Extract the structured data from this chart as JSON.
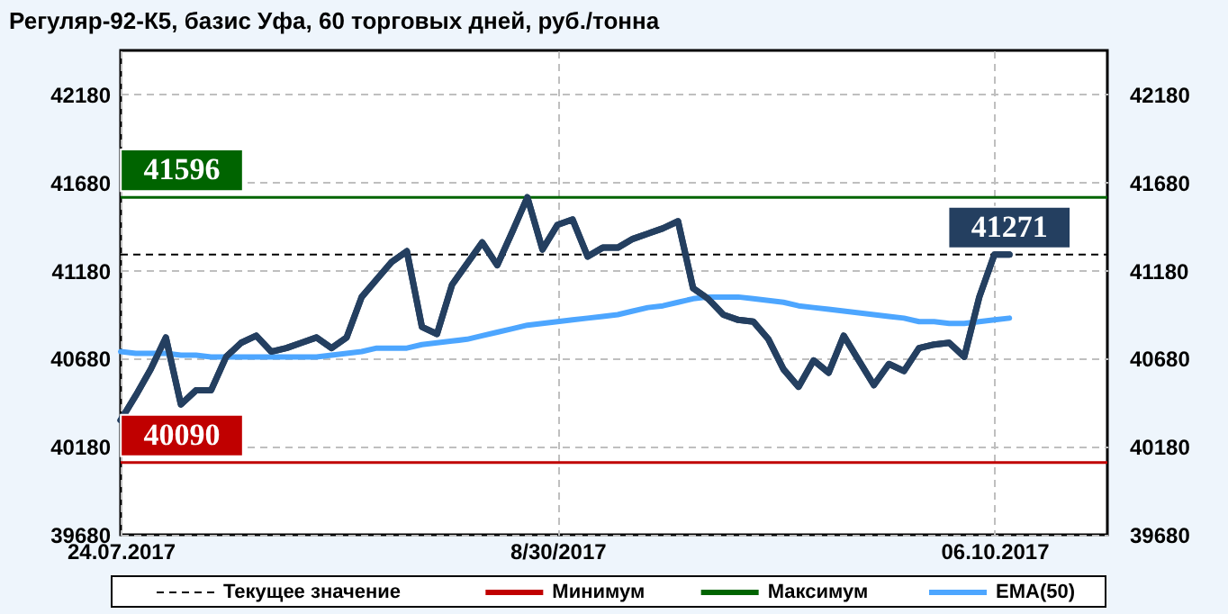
{
  "chart_data": {
    "type": "line",
    "title": "Регуляр-92-К5,  базис Уфа,  60 торговых дней, руб./тонна",
    "categories": [
      "24.07.2017",
      null,
      null,
      null,
      null,
      null,
      null,
      null,
      null,
      null,
      null,
      null,
      null,
      null,
      null,
      null,
      null,
      null,
      null,
      null,
      null,
      null,
      null,
      null,
      null,
      null,
      null,
      null,
      null,
      "8/30/2017",
      null,
      null,
      null,
      null,
      null,
      null,
      null,
      null,
      null,
      null,
      null,
      null,
      null,
      null,
      null,
      null,
      null,
      null,
      null,
      null,
      null,
      null,
      null,
      null,
      null,
      null,
      null,
      null,
      "06.10.2017",
      null
    ],
    "series": [
      {
        "color": "#243f60",
        "values": [
          40330,
          40470,
          40620,
          40800,
          40420,
          40500,
          40500,
          40690,
          40770,
          40810,
          40720,
          40740,
          40770,
          40800,
          40740,
          40800,
          41030,
          41130,
          41230,
          41290,
          40860,
          40820,
          41100,
          41220,
          41340,
          41210,
          41400,
          41596,
          41300,
          41440,
          41470,
          41260,
          41310,
          41310,
          41360,
          41390,
          41420,
          41460,
          41080,
          41020,
          40930,
          40900,
          40890,
          40790,
          40620,
          40520,
          40670,
          40600,
          40810,
          40670,
          40530,
          40650,
          40610,
          40740,
          40760,
          40770,
          40690,
          41030,
          41271,
          41271
        ]
      },
      {
        "name": "EMA(50)",
        "color": "#4da6ff",
        "values": [
          40720,
          40710,
          40710,
          40710,
          40700,
          40700,
          40690,
          40690,
          40690,
          40690,
          40690,
          40690,
          40690,
          40690,
          40700,
          40710,
          40720,
          40740,
          40740,
          40740,
          40760,
          40770,
          40780,
          40790,
          40810,
          40830,
          40850,
          40870,
          40880,
          40890,
          40900,
          40910,
          40920,
          40930,
          40950,
          40970,
          40980,
          41000,
          41020,
          41030,
          41030,
          41030,
          41020,
          41010,
          41000,
          40980,
          40970,
          40960,
          40950,
          40940,
          40930,
          40920,
          40910,
          40890,
          40890,
          40880,
          40880,
          40890,
          40900,
          40910
        ]
      }
    ],
    "ylim": [
      39680,
      42430
    ],
    "yticks": [
      39680,
      40180,
      40680,
      41180,
      41680,
      42180
    ],
    "y2lim": [
      39680,
      42430
    ],
    "y2ticks": [
      39680,
      40180,
      40680,
      41180,
      41680,
      42180
    ],
    "grid": true,
    "legend": "bottom",
    "line_style": "solid",
    "ref_lines": [
      {
        "axis": "y",
        "value": 41271,
        "label": "Текущее значение",
        "color": "#000000",
        "line_style": "dashed"
      },
      {
        "axis": "y",
        "value": 40090,
        "label": "Минимум",
        "color": "#c00000",
        "line_style": "solid"
      },
      {
        "axis": "y",
        "value": 41596,
        "label": "Максимум",
        "color": "#006400",
        "line_style": "solid"
      }
    ],
    "annotations": [
      {
        "text": "41596",
        "y": 41596
      },
      {
        "text": "40090",
        "y": 40090
      },
      {
        "text": "41271",
        "y": 41271
      }
    ]
  }
}
